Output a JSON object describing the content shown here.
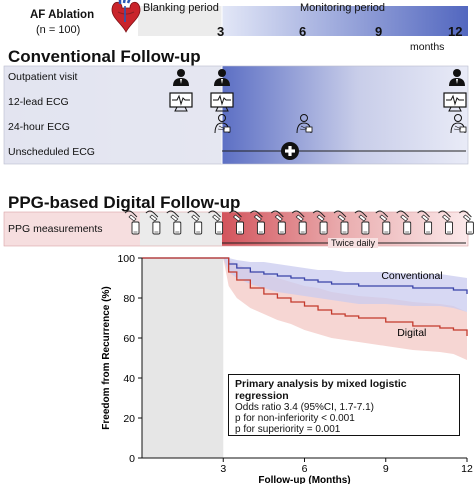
{
  "timeline": {
    "ablation_title": "AF Ablation",
    "ablation_n": "(n = 100)",
    "blanking": "Blanking period",
    "monitoring": "Monitoring period",
    "ticks": [
      "3",
      "6",
      "9",
      "12"
    ],
    "unit": "months"
  },
  "conventional": {
    "title": "Conventional Follow-up",
    "rows": [
      "Outpatient visit",
      "12-lead ECG",
      "24-hour ECG",
      "Unscheduled ECG"
    ]
  },
  "digital": {
    "title": "PPG-based Digital Follow-up",
    "row": "PPG measurements",
    "note": "Twice daily"
  },
  "colors": {
    "conventional_line": "#3a43a8",
    "conventional_band": "#c9cbef",
    "digital_line": "#c43a2c",
    "digital_band": "#f4cfcb",
    "blue_grad_dark": "#5c6fc4",
    "red_grad_dark": "#d3545c",
    "blanking_gray": "#e6e6e6"
  },
  "chart_data": {
    "type": "line",
    "xlabel": "Follow-up (Months)",
    "ylabel": "Freedom from Recurrence (%)",
    "xlim": [
      0,
      12
    ],
    "ylim": [
      0,
      100
    ],
    "xticks": [
      "3",
      "6",
      "9",
      "12"
    ],
    "yticks": [
      "0",
      "20",
      "40",
      "60",
      "80",
      "100"
    ],
    "shaded_region": [
      0,
      3
    ],
    "series": [
      {
        "name": "Conventional",
        "x": [
          0,
          3,
          3.2,
          3.5,
          4,
          4.5,
          5,
          5.5,
          6,
          6.5,
          7,
          7.5,
          8,
          9,
          10,
          11,
          11.5,
          12
        ],
        "values": [
          100,
          100,
          97,
          95,
          93,
          92,
          91,
          90,
          89,
          88,
          87,
          87,
          86,
          86,
          85,
          85,
          84,
          82
        ],
        "band_low": [
          100,
          100,
          93,
          90,
          87,
          85,
          83,
          82,
          81,
          80,
          79,
          78,
          77,
          77,
          76,
          76,
          75,
          73
        ],
        "band_high": [
          100,
          100,
          100,
          99,
          98,
          98,
          97,
          96,
          95,
          94,
          94,
          93,
          93,
          93,
          92,
          92,
          91,
          90
        ]
      },
      {
        "name": "Digital",
        "x": [
          0,
          3,
          3.2,
          3.5,
          4,
          4.5,
          5,
          5.5,
          6,
          6.5,
          7,
          7.5,
          8,
          9,
          10,
          11,
          11.5,
          12
        ],
        "values": [
          100,
          100,
          93,
          89,
          85,
          82,
          80,
          78,
          76,
          74,
          72,
          71,
          70,
          68,
          66,
          65,
          64,
          61
        ],
        "band_low": [
          100,
          100,
          86,
          80,
          75,
          72,
          69,
          67,
          64,
          62,
          60,
          59,
          58,
          56,
          54,
          53,
          52,
          49
        ],
        "band_high": [
          100,
          100,
          99,
          97,
          94,
          92,
          90,
          88,
          86,
          85,
          83,
          82,
          81,
          80,
          78,
          77,
          76,
          73
        ]
      }
    ]
  },
  "stats_box": {
    "title": "Primary analysis by mixed logistic regression",
    "lines": [
      "Odds ratio 3.4 (95%CI, 1.7-7.1)",
      "p for non-inferiority < 0.001",
      "p for superiority = 0.001"
    ]
  },
  "icons": {
    "heart": "heart-icon",
    "doctor": "doctor-icon",
    "ecg": "ecg-monitor-icon",
    "holter": "holter-monitor-icon",
    "plus": "plus-circle-icon",
    "ppg": "smartphone-finger-icon"
  }
}
